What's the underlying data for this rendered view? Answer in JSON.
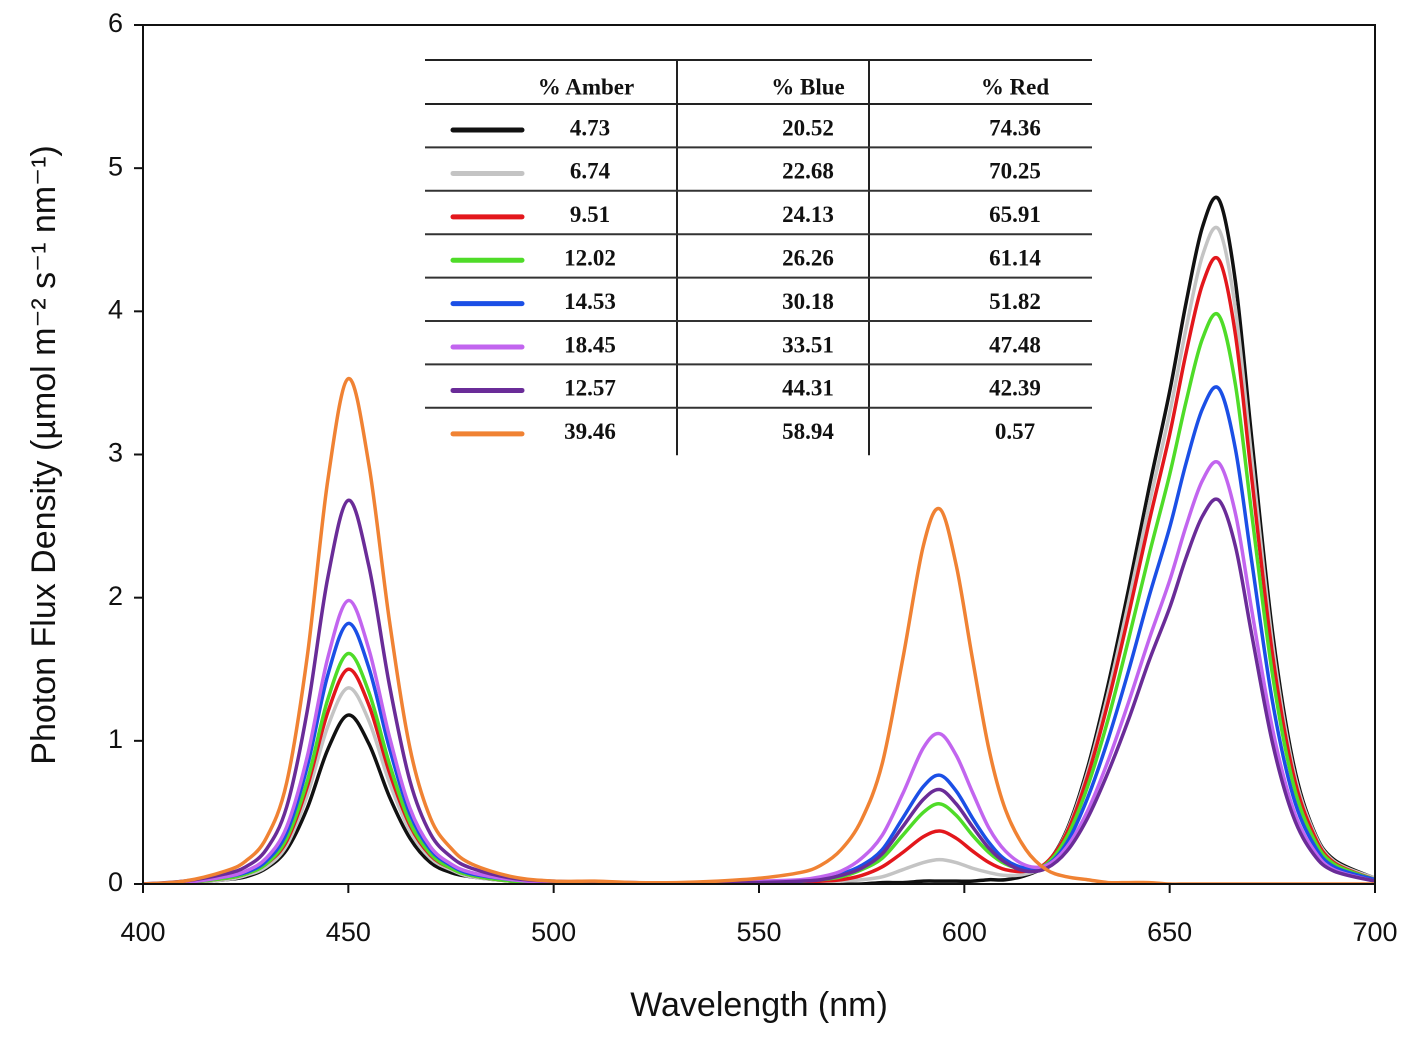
{
  "chart_data": {
    "type": "line",
    "x_label": "Wavelength (nm)",
    "y_label": "Photon Flux Density (µmol m⁻² s⁻¹ nm⁻¹)",
    "xlim": [
      400,
      700
    ],
    "ylim": [
      0,
      6
    ],
    "xticks": [
      400,
      450,
      500,
      550,
      600,
      650,
      700
    ],
    "yticks": [
      0,
      1,
      2,
      3,
      4,
      5,
      6
    ],
    "legend_columns": [
      "% Amber",
      "% Blue",
      "% Red"
    ],
    "x": [
      400,
      410,
      420,
      425,
      430,
      435,
      440,
      445,
      450,
      455,
      460,
      465,
      470,
      475,
      480,
      490,
      500,
      510,
      520,
      530,
      540,
      550,
      560,
      565,
      570,
      575,
      580,
      585,
      590,
      594,
      598,
      602,
      606,
      610,
      615,
      620,
      625,
      630,
      635,
      640,
      645,
      650,
      654,
      658,
      662,
      666,
      670,
      675,
      680,
      685,
      690,
      700
    ],
    "series": [
      {
        "color": "#111111",
        "legend_values": [
          4.73,
          20.52,
          74.36
        ],
        "values": [
          0,
          0.01,
          0.03,
          0.05,
          0.11,
          0.24,
          0.53,
          0.94,
          1.18,
          0.98,
          0.61,
          0.32,
          0.15,
          0.08,
          0.05,
          0.02,
          0.01,
          0,
          0,
          0,
          0,
          0,
          0,
          0,
          0,
          0,
          0.01,
          0.01,
          0.02,
          0.02,
          0.02,
          0.02,
          0.03,
          0.03,
          0.06,
          0.14,
          0.38,
          0.81,
          1.39,
          2.06,
          2.77,
          3.44,
          4.06,
          4.59,
          4.78,
          4.21,
          3.11,
          1.77,
          0.86,
          0.38,
          0.17,
          0.04
        ]
      },
      {
        "color": "#c4c4c4",
        "legend_values": [
          6.74,
          22.68,
          70.25
        ],
        "values": [
          0,
          0.01,
          0.03,
          0.06,
          0.12,
          0.27,
          0.62,
          1.1,
          1.37,
          1.14,
          0.71,
          0.37,
          0.18,
          0.1,
          0.05,
          0.02,
          0.01,
          0.01,
          0,
          0,
          0,
          0,
          0.01,
          0.01,
          0.02,
          0.03,
          0.05,
          0.1,
          0.15,
          0.17,
          0.15,
          0.11,
          0.08,
          0.06,
          0.07,
          0.14,
          0.37,
          0.78,
          1.33,
          1.97,
          2.65,
          3.29,
          3.88,
          4.39,
          4.57,
          4.02,
          2.97,
          1.69,
          0.82,
          0.37,
          0.16,
          0.04
        ]
      },
      {
        "color": "#e3171c",
        "legend_values": [
          9.51,
          24.13,
          65.91
        ],
        "values": [
          0,
          0.01,
          0.04,
          0.07,
          0.14,
          0.3,
          0.68,
          1.2,
          1.5,
          1.25,
          0.78,
          0.41,
          0.2,
          0.11,
          0.06,
          0.02,
          0.01,
          0.01,
          0,
          0,
          0,
          0.01,
          0.01,
          0.02,
          0.03,
          0.06,
          0.12,
          0.22,
          0.33,
          0.37,
          0.32,
          0.23,
          0.15,
          0.1,
          0.09,
          0.15,
          0.36,
          0.75,
          1.27,
          1.88,
          2.53,
          3.14,
          3.71,
          4.19,
          4.36,
          3.84,
          2.83,
          1.61,
          0.78,
          0.35,
          0.15,
          0.03
        ]
      },
      {
        "color": "#4fdc28",
        "legend_values": [
          12.02,
          26.26,
          61.14
        ],
        "values": [
          0,
          0.01,
          0.04,
          0.07,
          0.14,
          0.32,
          0.72,
          1.29,
          1.61,
          1.34,
          0.84,
          0.43,
          0.21,
          0.11,
          0.06,
          0.02,
          0.01,
          0.01,
          0,
          0,
          0,
          0.01,
          0.02,
          0.03,
          0.05,
          0.1,
          0.18,
          0.34,
          0.5,
          0.56,
          0.48,
          0.34,
          0.22,
          0.14,
          0.1,
          0.14,
          0.33,
          0.68,
          1.15,
          1.71,
          2.3,
          2.86,
          3.37,
          3.81,
          3.97,
          3.49,
          2.58,
          1.47,
          0.71,
          0.32,
          0.14,
          0.03
        ]
      },
      {
        "color": "#1b4fe6",
        "legend_values": [
          14.53,
          30.18,
          51.82
        ],
        "values": [
          0,
          0.01,
          0.05,
          0.08,
          0.16,
          0.36,
          0.82,
          1.46,
          1.82,
          1.51,
          0.95,
          0.49,
          0.24,
          0.13,
          0.07,
          0.03,
          0.01,
          0.01,
          0,
          0,
          0.01,
          0.01,
          0.02,
          0.04,
          0.07,
          0.13,
          0.24,
          0.46,
          0.68,
          0.76,
          0.65,
          0.46,
          0.29,
          0.17,
          0.11,
          0.13,
          0.29,
          0.6,
          1.01,
          1.49,
          2.01,
          2.49,
          2.94,
          3.32,
          3.46,
          3.04,
          2.25,
          1.28,
          0.62,
          0.28,
          0.12,
          0.03
        ]
      },
      {
        "color": "#c265ef",
        "legend_values": [
          18.45,
          33.51,
          47.48
        ],
        "values": [
          0,
          0.01,
          0.05,
          0.09,
          0.18,
          0.4,
          0.89,
          1.58,
          1.98,
          1.64,
          1.03,
          0.53,
          0.26,
          0.14,
          0.08,
          0.03,
          0.01,
          0.01,
          0,
          0,
          0.01,
          0.02,
          0.03,
          0.05,
          0.09,
          0.18,
          0.34,
          0.63,
          0.95,
          1.05,
          0.9,
          0.64,
          0.39,
          0.23,
          0.13,
          0.13,
          0.26,
          0.51,
          0.86,
          1.27,
          1.71,
          2.12,
          2.5,
          2.82,
          2.94,
          2.59,
          1.91,
          1.09,
          0.53,
          0.24,
          0.1,
          0.02
        ]
      },
      {
        "color": "#6a2c98",
        "legend_values": [
          12.57,
          44.31,
          42.39
        ],
        "values": [
          0,
          0.02,
          0.07,
          0.12,
          0.24,
          0.54,
          1.21,
          2.14,
          2.68,
          2.22,
          1.39,
          0.72,
          0.35,
          0.19,
          0.11,
          0.04,
          0.02,
          0.01,
          0.01,
          0,
          0.01,
          0.01,
          0.02,
          0.03,
          0.06,
          0.11,
          0.21,
          0.4,
          0.59,
          0.66,
          0.56,
          0.4,
          0.25,
          0.15,
          0.09,
          0.11,
          0.23,
          0.46,
          0.78,
          1.15,
          1.56,
          1.93,
          2.28,
          2.57,
          2.68,
          2.36,
          1.74,
          0.99,
          0.48,
          0.21,
          0.09,
          0.02
        ]
      },
      {
        "color": "#f08233",
        "legend_values": [
          39.46,
          58.94,
          0.57
        ],
        "values": [
          0,
          0.02,
          0.09,
          0.16,
          0.32,
          0.71,
          1.59,
          2.82,
          3.53,
          2.93,
          1.84,
          0.95,
          0.46,
          0.25,
          0.14,
          0.05,
          0.02,
          0.02,
          0.01,
          0.01,
          0.02,
          0.04,
          0.08,
          0.13,
          0.24,
          0.45,
          0.84,
          1.57,
          2.36,
          2.62,
          2.23,
          1.57,
          0.94,
          0.52,
          0.24,
          0.1,
          0.05,
          0.03,
          0.01,
          0.01,
          0.01,
          0,
          0,
          0,
          0,
          0,
          0,
          0,
          0,
          0,
          0,
          0
        ]
      }
    ]
  }
}
